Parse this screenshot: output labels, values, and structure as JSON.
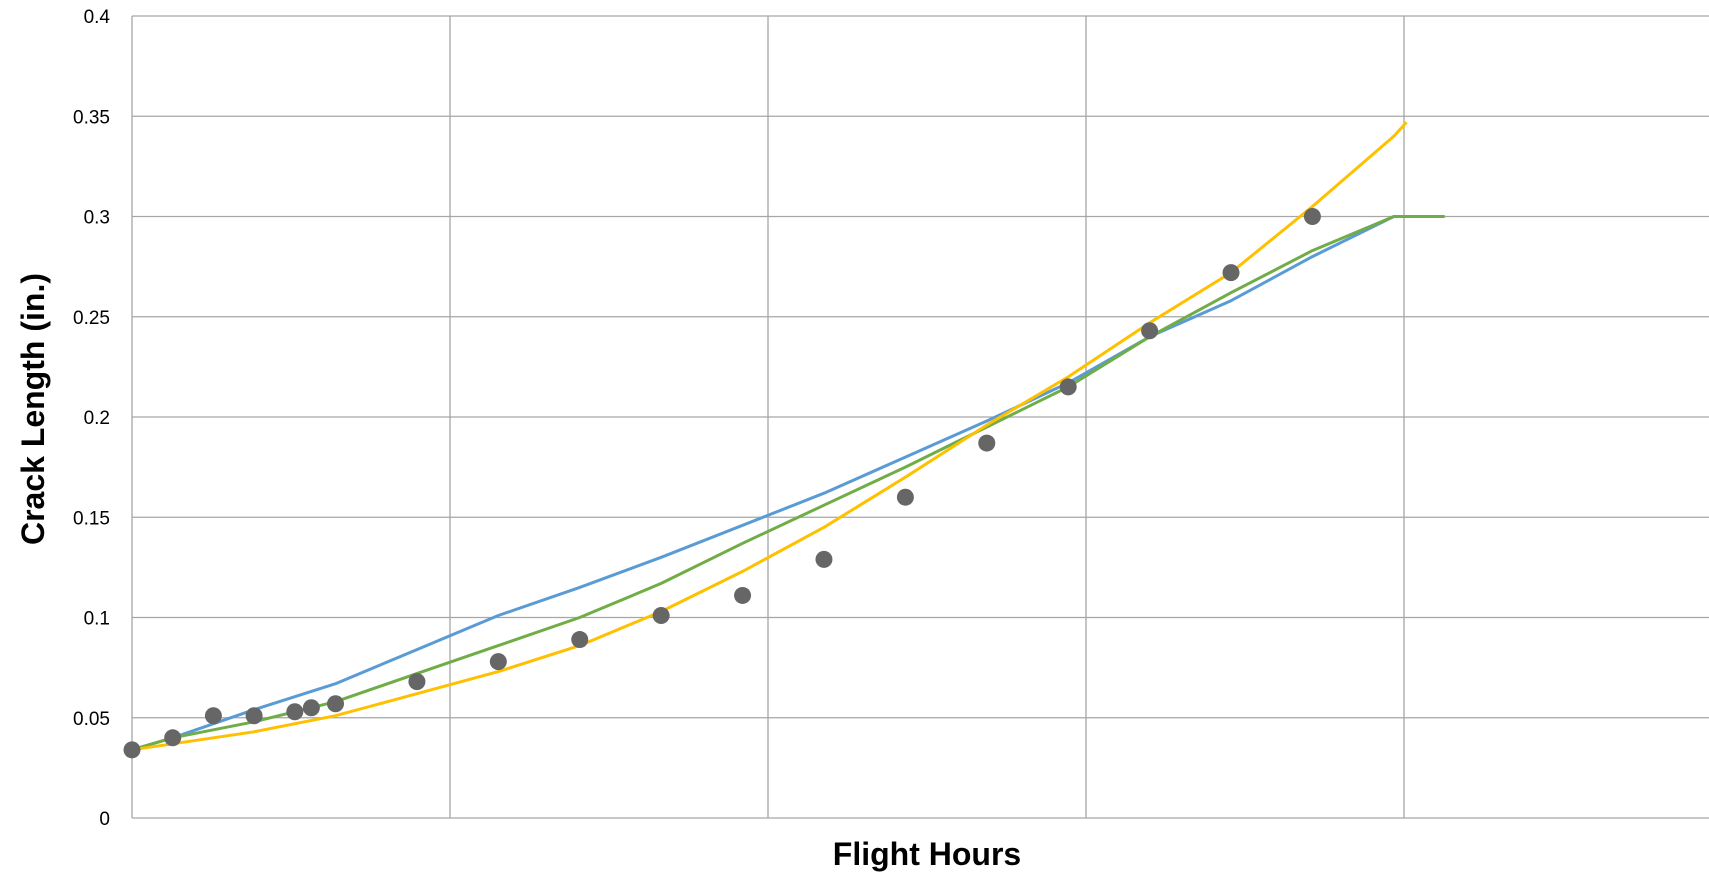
{
  "chart_data": {
    "type": "line",
    "title": "",
    "xlabel": "Flight Hours",
    "ylabel": "Crack Length (in.)",
    "xlim": [
      0,
      100
    ],
    "ylim": [
      0,
      0.4
    ],
    "y_ticks": [
      "0",
      "0.05",
      "0.1",
      "0.15",
      "0.2",
      "0.25",
      "0.3",
      "0.35",
      "0.4"
    ],
    "x_tick_labels_shown": false,
    "grid": true,
    "legend": "none",
    "series": [
      {
        "kind": "line",
        "color": "#5b9bd5",
        "x": [
          0,
          3.2,
          9.6,
          16,
          22.4,
          28.8,
          35.2,
          41.6,
          48,
          54.4,
          60.8,
          67.2,
          73.6,
          80,
          86.4,
          92.8,
          99.2
        ],
        "y": [
          0.034,
          0.04,
          0.054,
          0.067,
          0.084,
          0.101,
          0.115,
          0.13,
          0.146,
          0.162,
          0.18,
          0.198,
          0.217,
          0.24,
          0.258,
          0.28,
          0.3
        ]
      },
      {
        "kind": "line",
        "color": "#70ad47",
        "x": [
          0,
          3.2,
          9.6,
          16,
          22.4,
          28.8,
          35.2,
          41.6,
          48,
          54.4,
          60.8,
          67.2,
          73.6,
          80,
          86.4,
          92.8,
          99.2,
          103.2
        ],
        "y": [
          0.034,
          0.04,
          0.048,
          0.058,
          0.072,
          0.086,
          0.1,
          0.117,
          0.137,
          0.156,
          0.175,
          0.195,
          0.215,
          0.24,
          0.262,
          0.283,
          0.3,
          0.3
        ]
      },
      {
        "kind": "line",
        "color": "#ffc000",
        "x": [
          0,
          3.2,
          9.6,
          16,
          22.4,
          28.8,
          35.2,
          41.6,
          48,
          54.4,
          60.8,
          67.2,
          73.6,
          80,
          86.4,
          92.8,
          99.2,
          100.2
        ],
        "y": [
          0.034,
          0.037,
          0.043,
          0.051,
          0.062,
          0.073,
          0.086,
          0.103,
          0.123,
          0.145,
          0.17,
          0.196,
          0.22,
          0.247,
          0.272,
          0.305,
          0.34,
          0.347
        ]
      },
      {
        "kind": "scatter",
        "color": "#666666",
        "x": [
          0,
          3.2,
          6.4,
          9.6,
          12.8,
          14.1,
          16,
          22.4,
          28.8,
          35.2,
          41.6,
          48,
          54.4,
          60.8,
          67.2,
          73.6,
          80,
          86.4,
          92.8
        ],
        "y": [
          0.034,
          0.04,
          0.051,
          0.051,
          0.053,
          0.055,
          0.057,
          0.068,
          0.078,
          0.089,
          0.101,
          0.111,
          0.129,
          0.16,
          0.187,
          0.215,
          0.243,
          0.272,
          0.3
        ]
      }
    ]
  }
}
